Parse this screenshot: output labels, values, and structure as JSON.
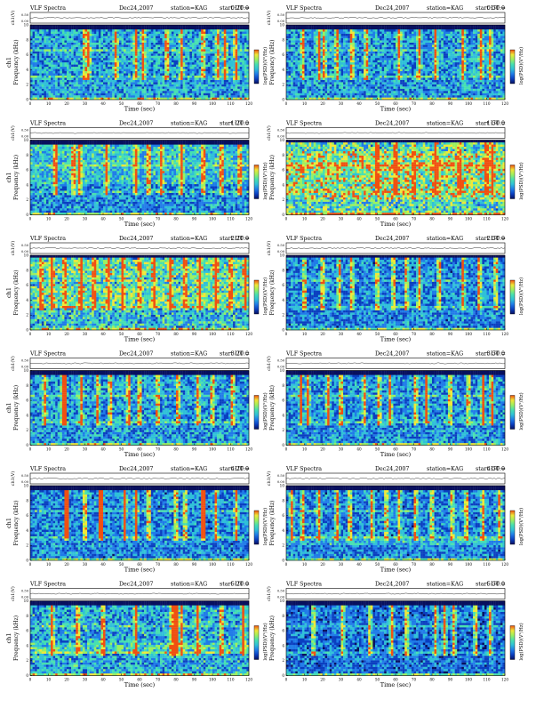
{
  "header": {
    "prefix": "VLF Spectra",
    "date": "Dec24,2007",
    "station": "station=KAG",
    "start_prefix": "start UT ="
  },
  "axes": {
    "top_label": "ch1(V)",
    "top_ticks": [
      "0.00",
      "0.50"
    ],
    "ylabel_ch": "ch1",
    "ylabel": "Frequency (kHz)",
    "yticks": [
      "0",
      "2",
      "4",
      "6",
      "8",
      "10"
    ],
    "xlabel": "Time (sec)",
    "xticks": [
      "0",
      "10",
      "20",
      "30",
      "40",
      "50",
      "60",
      "70",
      "80",
      "90",
      "100",
      "110",
      "120"
    ],
    "colorbar_label": "log(PSD)(V²/Hz)"
  },
  "colormap": [
    "#08105e",
    "#0a3fc0",
    "#1f7be8",
    "#2fc0d8",
    "#47e0b0",
    "#9cf060",
    "#f0e838",
    "#f05010"
  ],
  "chart_data": [
    {
      "type": "heatmap",
      "start_ut": "0:20:0",
      "xlim": [
        0,
        120
      ],
      "ylim": [
        0,
        10
      ],
      "seed": 11,
      "noise": 0.5,
      "cutoff": 9.5,
      "haze": [],
      "bursts": [
        30,
        32,
        47,
        58,
        62,
        75,
        83,
        95,
        103,
        107,
        113
      ],
      "hot": []
    },
    {
      "type": "heatmap",
      "start_ut": "0:50:0",
      "xlim": [
        0,
        120
      ],
      "ylim": [
        0,
        10
      ],
      "seed": 23,
      "noise": 0.48,
      "cutoff": 9.5,
      "haze": [
        [
          16,
          21
        ],
        [
          28,
          30
        ]
      ],
      "bursts": [
        9,
        18,
        21,
        28,
        36,
        44,
        62,
        73,
        82,
        97,
        107,
        112
      ],
      "hot": []
    },
    {
      "type": "heatmap",
      "start_ut": "1:20:0",
      "xlim": [
        0,
        120
      ],
      "ylim": [
        0,
        10
      ],
      "seed": 37,
      "noise": 0.46,
      "cutoff": 9.5,
      "haze": [
        [
          4,
          12
        ]
      ],
      "bursts": [
        14,
        24,
        27,
        42,
        58,
        65,
        72,
        83,
        95,
        105,
        115
      ],
      "hot": []
    },
    {
      "type": "heatmap",
      "start_ut": "1:50:0",
      "xlim": [
        0,
        120
      ],
      "ylim": [
        0,
        10
      ],
      "seed": 41,
      "noise": 0.66,
      "cutoff": 9.8,
      "haze": [
        [
          6,
          8.5
        ],
        [
          2,
          5
        ],
        [
          5,
          7
        ]
      ],
      "bursts": [
        50,
        60,
        70,
        82,
        95,
        110,
        113
      ],
      "hot": []
    },
    {
      "type": "heatmap",
      "start_ut": "2:20:0",
      "xlim": [
        0,
        120
      ],
      "ylim": [
        0,
        10
      ],
      "seed": 53,
      "noise": 0.58,
      "cutoff": 9.6,
      "haze": [
        [
          3,
          6
        ],
        [
          7,
          9.5
        ]
      ],
      "bursts": [
        6,
        12,
        19,
        28,
        35,
        43,
        51,
        60,
        68,
        77,
        85,
        93,
        102,
        110,
        118
      ],
      "hot": []
    },
    {
      "type": "heatmap",
      "start_ut": "2:50:0",
      "xlim": [
        0,
        120
      ],
      "ylim": [
        0,
        10
      ],
      "seed": 67,
      "noise": 0.44,
      "cutoff": 9.6,
      "haze": [],
      "bursts": [
        10,
        20,
        29,
        36,
        50,
        59,
        66,
        73,
        84,
        97,
        106,
        115
      ],
      "hot": []
    },
    {
      "type": "heatmap",
      "start_ut": "3:20:0",
      "xlim": [
        0,
        120
      ],
      "ylim": [
        0,
        10
      ],
      "seed": 71,
      "noise": 0.48,
      "cutoff": 9.5,
      "haze": [],
      "bursts": [
        8,
        18,
        19,
        28,
        37,
        44,
        54,
        60,
        70,
        81,
        92,
        100,
        111
      ],
      "hot": [
        19
      ]
    },
    {
      "type": "heatmap",
      "start_ut": "3:50:0",
      "xlim": [
        0,
        120
      ],
      "ylim": [
        0,
        10
      ],
      "seed": 83,
      "noise": 0.46,
      "cutoff": 9.5,
      "haze": [],
      "bursts": [
        8,
        12,
        23,
        30,
        43,
        51,
        57,
        71,
        77,
        90,
        100,
        108,
        113
      ],
      "hot": [
        8,
        77,
        108
      ]
    },
    {
      "type": "heatmap",
      "start_ut": "4:20:0",
      "xlim": [
        0,
        120
      ],
      "ylim": [
        0,
        10
      ],
      "seed": 97,
      "noise": 0.44,
      "cutoff": 9.5,
      "haze": [],
      "bursts": [
        20,
        30,
        39,
        52,
        58,
        65,
        80,
        85,
        95,
        102,
        113
      ],
      "hot": [
        20,
        39,
        58,
        95
      ]
    },
    {
      "type": "heatmap",
      "start_ut": "4:50:0",
      "xlim": [
        0,
        120
      ],
      "ylim": [
        0,
        10
      ],
      "seed": 101,
      "noise": 0.44,
      "cutoff": 9.4,
      "haze": [
        [
          2.2,
          3.2
        ]
      ],
      "bursts": [
        3,
        9,
        18,
        28,
        35,
        47,
        55,
        62,
        71,
        80,
        91,
        99,
        108,
        117
      ],
      "hot": []
    },
    {
      "type": "heatmap",
      "start_ut": "5:20:0",
      "xlim": [
        0,
        120
      ],
      "ylim": [
        0,
        10
      ],
      "seed": 113,
      "noise": 0.52,
      "cutoff": 9.5,
      "haze": [
        [
          3,
          4.5
        ]
      ],
      "bursts": [
        12,
        26,
        40,
        58,
        78,
        80,
        83,
        92,
        105,
        117
      ],
      "hot": [
        80
      ]
    },
    {
      "type": "heatmap",
      "start_ut": "5:50:0",
      "xlim": [
        0,
        120
      ],
      "ylim": [
        0,
        10
      ],
      "seed": 127,
      "noise": 0.4,
      "cutoff": 9.5,
      "haze": [],
      "bursts": [
        15,
        31,
        46,
        58,
        66,
        82,
        87,
        92,
        104,
        112
      ],
      "hot": []
    }
  ]
}
